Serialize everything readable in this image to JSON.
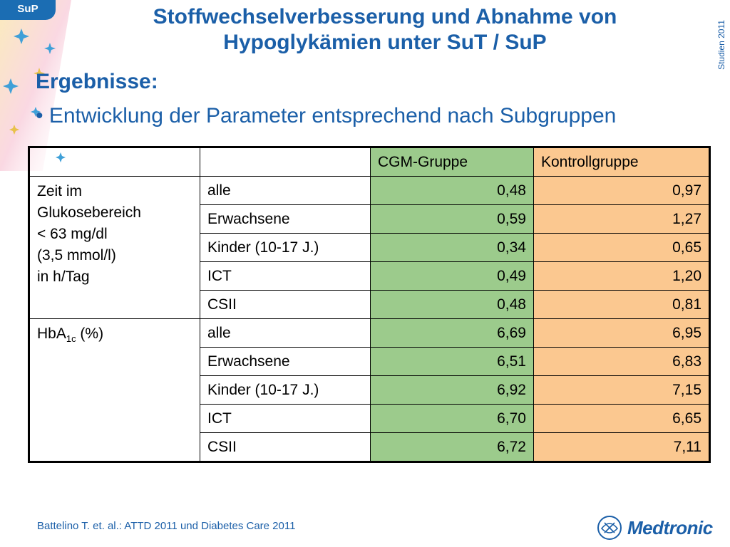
{
  "badge": "SuP",
  "title_line1": "Stoffwechselverbesserung und Abnahme von",
  "title_line2": "Hypoglykämien unter SuT / SuP",
  "side_label": "Studien 2011",
  "heading": "Ergebnisse:",
  "bullet": "• Entwicklung der Parameter entsprechend nach Subgruppen",
  "table": {
    "columns": [
      "",
      "",
      "CGM-Gruppe",
      "Kontrollgruppe"
    ],
    "group1": {
      "label_lines": [
        "Zeit im",
        "Glukosebereich",
        "< 63 mg/dl",
        "(3,5 mmol/l)",
        "in h/Tag"
      ],
      "rows": [
        {
          "sub": "alle",
          "cgm": "0,48",
          "ctrl": "0,97"
        },
        {
          "sub": "Erwachsene",
          "cgm": "0,59",
          "ctrl": "1,27"
        },
        {
          "sub": "Kinder (10-17 J.)",
          "cgm": "0,34",
          "ctrl": "0,65"
        },
        {
          "sub": "ICT",
          "cgm": "0,49",
          "ctrl": "1,20"
        },
        {
          "sub": "CSII",
          "cgm": "0,48",
          "ctrl": "0,81"
        }
      ]
    },
    "group2": {
      "label_main": "HbA",
      "label_sub": "1c",
      "label_tail": " (%)",
      "rows": [
        {
          "sub": "alle",
          "cgm": "6,69",
          "ctrl": "6,95"
        },
        {
          "sub": "Erwachsene",
          "cgm": "6,51",
          "ctrl": "6,83"
        },
        {
          "sub": "Kinder (10-17 J.)",
          "cgm": "6,92",
          "ctrl": "7,15"
        },
        {
          "sub": "ICT",
          "cgm": "6,70",
          "ctrl": "6,65"
        },
        {
          "sub": "CSII",
          "cgm": "6,72",
          "ctrl": "7,11"
        }
      ]
    }
  },
  "footer": "Battelino T. et. al.: ATTD 2011 und Diabetes Care 2011",
  "logo_text": "Medtronic",
  "colors": {
    "accent": "#1b5fa8",
    "cgm": "#9ccb8c",
    "control": "#fbc890"
  }
}
